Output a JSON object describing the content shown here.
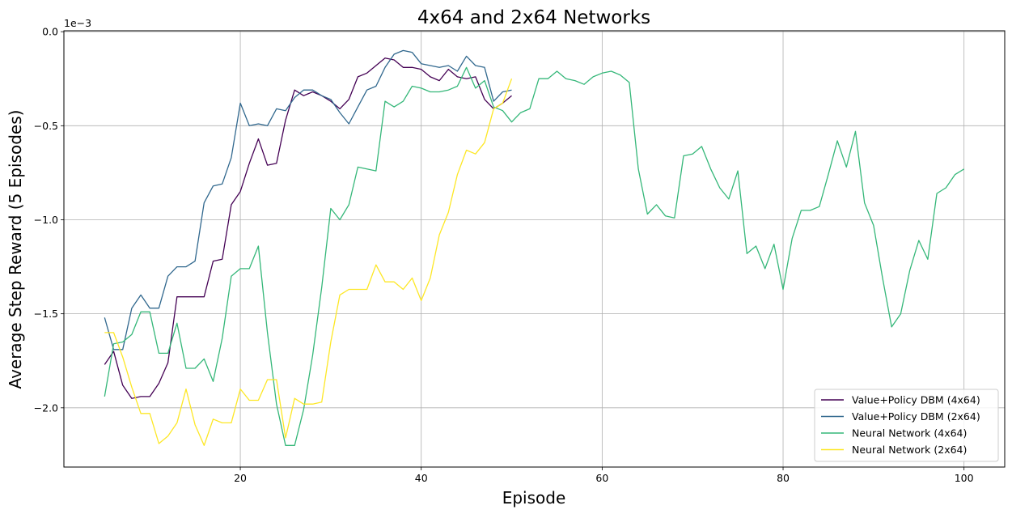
{
  "chart_data": {
    "type": "line",
    "title": "4x64 and 2x64 Networks",
    "xlabel": "Episode",
    "ylabel": "Average Step Reward (5 Episodes)",
    "y_scale_label": "1e−3",
    "xlim": [
      0.5,
      104.5
    ],
    "ylim": [
      -2.315,
      0.005
    ],
    "xticks": [
      20,
      40,
      60,
      80,
      100
    ],
    "xtick_labels": [
      "20",
      "40",
      "60",
      "80",
      "100"
    ],
    "yticks": [
      0.0,
      -0.5,
      -1.0,
      -1.5,
      -2.0
    ],
    "ytick_labels": [
      "0.0",
      "−0.5",
      "−1.0",
      "−1.5",
      "−2.0"
    ],
    "grid": true,
    "legend_position": "lower-right",
    "series": [
      {
        "name": "Value+Policy DBM (4x64)",
        "color": "#440154",
        "x": [
          5,
          6,
          7,
          8,
          9,
          10,
          11,
          12,
          13,
          14,
          15,
          16,
          17,
          18,
          19,
          20,
          21,
          22,
          23,
          24,
          25,
          26,
          27,
          28,
          29,
          30,
          31,
          32,
          33,
          34,
          35,
          36,
          37,
          38,
          39,
          40,
          41,
          42,
          43,
          44,
          45,
          46,
          47,
          48,
          49,
          50
        ],
        "y": [
          -1.77,
          -1.7,
          -1.88,
          -1.95,
          -1.94,
          -1.94,
          -1.87,
          -1.76,
          -1.41,
          -1.41,
          -1.41,
          -1.41,
          -1.22,
          -1.21,
          -0.92,
          -0.85,
          -0.7,
          -0.57,
          -0.71,
          -0.7,
          -0.47,
          -0.31,
          -0.34,
          -0.32,
          -0.34,
          -0.37,
          -0.41,
          -0.36,
          -0.24,
          -0.22,
          -0.18,
          -0.14,
          -0.15,
          -0.19,
          -0.19,
          -0.2,
          -0.24,
          -0.26,
          -0.2,
          -0.24,
          -0.25,
          -0.24,
          -0.36,
          -0.41,
          -0.38,
          -0.34
        ]
      },
      {
        "name": "Value+Policy DBM (2x64)",
        "color": "#31688e",
        "x": [
          5,
          6,
          7,
          8,
          9,
          10,
          11,
          12,
          13,
          14,
          15,
          16,
          17,
          18,
          19,
          20,
          21,
          22,
          23,
          24,
          25,
          26,
          27,
          28,
          29,
          30,
          31,
          32,
          33,
          34,
          35,
          36,
          37,
          38,
          39,
          40,
          41,
          42,
          43,
          44,
          45,
          46,
          47,
          48,
          49,
          50
        ],
        "y": [
          -1.52,
          -1.69,
          -1.69,
          -1.47,
          -1.4,
          -1.47,
          -1.47,
          -1.3,
          -1.25,
          -1.25,
          -1.22,
          -0.91,
          -0.82,
          -0.81,
          -0.67,
          -0.38,
          -0.5,
          -0.49,
          -0.5,
          -0.41,
          -0.42,
          -0.35,
          -0.31,
          -0.31,
          -0.34,
          -0.36,
          -0.43,
          -0.49,
          -0.4,
          -0.31,
          -0.29,
          -0.19,
          -0.12,
          -0.1,
          -0.11,
          -0.17,
          -0.18,
          -0.19,
          -0.18,
          -0.21,
          -0.13,
          -0.18,
          -0.19,
          -0.37,
          -0.32,
          -0.31
        ]
      },
      {
        "name": "Neural Network (4x64)",
        "color": "#35b779",
        "x": [
          5,
          6,
          7,
          8,
          9,
          10,
          11,
          12,
          13,
          14,
          15,
          16,
          17,
          18,
          19,
          20,
          21,
          22,
          23,
          24,
          25,
          26,
          27,
          28,
          29,
          30,
          31,
          32,
          33,
          34,
          35,
          36,
          37,
          38,
          39,
          40,
          41,
          42,
          43,
          44,
          45,
          46,
          47,
          48,
          49,
          50,
          51,
          52,
          53,
          54,
          55,
          56,
          57,
          58,
          59,
          60,
          61,
          62,
          63,
          64,
          65,
          66,
          67,
          68,
          69,
          70,
          71,
          72,
          73,
          74,
          75,
          76,
          77,
          78,
          79,
          80,
          81,
          82,
          83,
          84,
          85,
          86,
          87,
          88,
          89,
          90,
          91,
          92,
          93,
          94,
          95,
          96,
          97,
          98,
          99,
          100
        ],
        "y": [
          -1.94,
          -1.66,
          -1.65,
          -1.61,
          -1.49,
          -1.49,
          -1.71,
          -1.71,
          -1.55,
          -1.79,
          -1.79,
          -1.74,
          -1.86,
          -1.63,
          -1.3,
          -1.26,
          -1.26,
          -1.14,
          -1.6,
          -1.98,
          -2.2,
          -2.2,
          -2.01,
          -1.72,
          -1.36,
          -0.94,
          -1.0,
          -0.92,
          -0.72,
          -0.73,
          -0.74,
          -0.37,
          -0.4,
          -0.37,
          -0.29,
          -0.3,
          -0.32,
          -0.32,
          -0.31,
          -0.29,
          -0.19,
          -0.3,
          -0.26,
          -0.4,
          -0.42,
          -0.48,
          -0.43,
          -0.41,
          -0.25,
          -0.25,
          -0.21,
          -0.25,
          -0.26,
          -0.28,
          -0.24,
          -0.22,
          -0.21,
          -0.23,
          -0.27,
          -0.73,
          -0.97,
          -0.92,
          -0.98,
          -0.99,
          -0.66,
          -0.65,
          -0.61,
          -0.73,
          -0.83,
          -0.89,
          -0.74,
          -1.18,
          -1.14,
          -1.26,
          -1.13,
          -1.37,
          -1.1,
          -0.95,
          -0.95,
          -0.93,
          -0.76,
          -0.58,
          -0.72,
          -0.53,
          -0.91,
          -1.03,
          -1.31,
          -1.57,
          -1.5,
          -1.27,
          -1.11,
          -1.21,
          -0.86,
          -0.83,
          -0.76,
          -0.73
        ]
      },
      {
        "name": "Neural Network (2x64)",
        "color": "#fde725",
        "x": [
          5,
          6,
          7,
          8,
          9,
          10,
          11,
          12,
          13,
          14,
          15,
          16,
          17,
          18,
          19,
          20,
          21,
          22,
          23,
          24,
          25,
          26,
          27,
          28,
          29,
          30,
          31,
          32,
          33,
          34,
          35,
          36,
          37,
          38,
          39,
          40,
          41,
          42,
          43,
          44,
          45,
          46,
          47,
          48,
          49,
          50
        ],
        "y": [
          -1.6,
          -1.6,
          -1.73,
          -1.89,
          -2.03,
          -2.03,
          -2.19,
          -2.15,
          -2.08,
          -1.9,
          -2.09,
          -2.2,
          -2.06,
          -2.08,
          -2.08,
          -1.9,
          -1.96,
          -1.96,
          -1.85,
          -1.85,
          -2.16,
          -1.95,
          -1.98,
          -1.98,
          -1.97,
          -1.65,
          -1.4,
          -1.37,
          -1.37,
          -1.37,
          -1.24,
          -1.33,
          -1.33,
          -1.37,
          -1.31,
          -1.43,
          -1.31,
          -1.08,
          -0.96,
          -0.76,
          -0.63,
          -0.65,
          -0.59,
          -0.41,
          -0.38,
          -0.25
        ]
      }
    ]
  }
}
